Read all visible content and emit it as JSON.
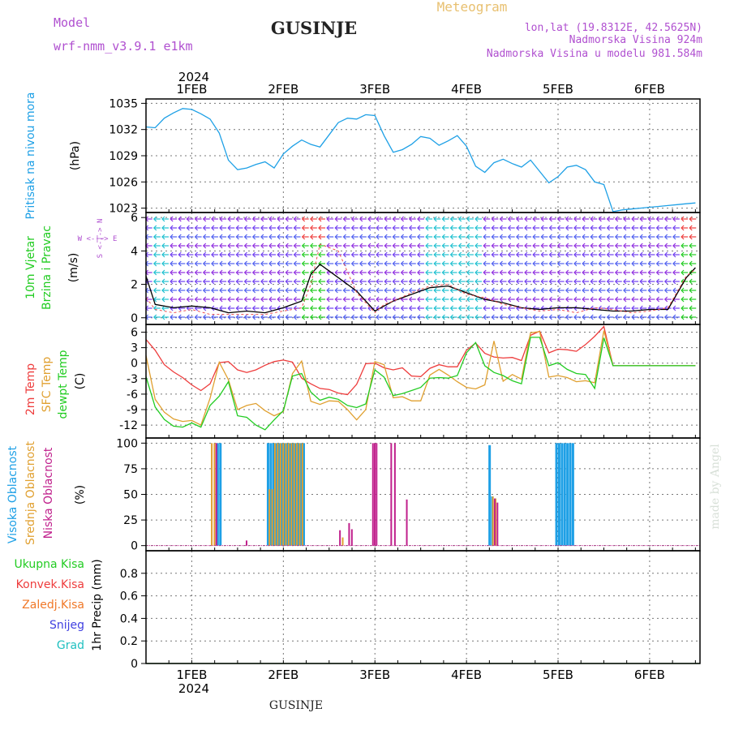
{
  "header": {
    "model_label": "Model",
    "model_name": "wrf-nmm_v3.9.1  e1km",
    "station": "GUSINJE",
    "product": "Meteogram",
    "lonlat": "lon,lat (19.8312E, 42.5625N)",
    "elevation": "Nadmorska Visina 924m",
    "model_elevation": "Nadmorska Visina u modelu 981.584m"
  },
  "footer": {
    "station": "GUSINJE",
    "watermark": "made by Angel"
  },
  "colors": {
    "pressure": "#1ea0e6",
    "wind_green": "#22cc22",
    "temp2m": "#ee3c3c",
    "sfc": "#e0a030",
    "dew": "#22cc22",
    "cloud_high": "#1ea0e6",
    "cloud_mid": "#e0a030",
    "cloud_low": "#c0208c",
    "precip_total": "#22cc22",
    "precip_conv": "#ee3c3c",
    "precip_frz": "#f07828",
    "precip_snow": "#4040e0",
    "precip_grad": "#20c0c0",
    "model": "#b050d0"
  },
  "time_axis": {
    "year": "2024",
    "days": [
      "1FEB",
      "2FEB",
      "3FEB",
      "4FEB",
      "5FEB",
      "6FEB"
    ],
    "range_days": [
      -0.5,
      5.55
    ]
  },
  "chart_data": [
    {
      "type": "line",
      "panel": "pressure",
      "ylabel": "Pritisak na nivou mora",
      "unit": "(hPa)",
      "ylim": [
        1022.5,
        1035.5
      ],
      "yticks": [
        1023,
        1026,
        1029,
        1032,
        1035
      ],
      "series": [
        {
          "x": [
            -0.5,
            -0.4,
            -0.3,
            -0.2,
            -0.1,
            0,
            0.1,
            0.2,
            0.3,
            0.4,
            0.5,
            0.6,
            0.7,
            0.8,
            0.9,
            1.0,
            1.1,
            1.2,
            1.3,
            1.4,
            1.5,
            1.6,
            1.7,
            1.8,
            1.9,
            2.0,
            2.1,
            2.2,
            2.3,
            2.4,
            2.5,
            2.6,
            2.7,
            2.8,
            2.9,
            3.0,
            3.1,
            3.2,
            3.3,
            3.4,
            3.5,
            3.6,
            3.7,
            3.8,
            3.9,
            4.0,
            4.1,
            4.2,
            4.3,
            4.4,
            4.5,
            4.6,
            4.7,
            4.8,
            4.9,
            5.0,
            5.1,
            5.2,
            5.3,
            5.4,
            5.5
          ],
          "values": [
            1032.3,
            1032.2,
            1033.3,
            1033.9,
            1034.4,
            1034.3,
            1033.8,
            1033.2,
            1031.6,
            1028.5,
            1027.4,
            1027.6,
            1028.0,
            1028.3,
            1027.6,
            1029.2,
            1030.1,
            1030.8,
            1030.3,
            1030.0,
            1031.4,
            1032.8,
            1033.3,
            1033.2,
            1033.7,
            1033.6,
            1031.3,
            1029.4,
            1029.7,
            1030.3,
            1031.2,
            1031.0,
            1030.2,
            1030.7,
            1031.3,
            1030.1,
            1027.8,
            1027.1,
            1028.2,
            1028.6,
            1028.1,
            1027.7,
            1028.5,
            1027.2,
            1025.9,
            1026.6,
            1027.7,
            1027.9,
            1027.4,
            1026.0,
            1025.7,
            1022.6,
            1022.8,
            1022.9,
            1023.0,
            1023.1,
            1023.2,
            1023.3,
            1023.4,
            1023.5,
            1023.6
          ]
        }
      ]
    },
    {
      "type": "line",
      "panel": "wind",
      "ylabel": "10m Vjetar",
      "ylabel2": "Brzina i Pravac",
      "unit": "(m/s)",
      "compass": "W <-|-> E",
      "compass_v": "S <-|-> N",
      "ylim": [
        -0.4,
        6.3
      ],
      "yticks": [
        0,
        2,
        4,
        6
      ],
      "series": [
        {
          "name": "speed",
          "x": [
            -0.5,
            -0.4,
            -0.2,
            0,
            0.2,
            0.4,
            0.6,
            0.8,
            1.0,
            1.2,
            1.3,
            1.4,
            1.6,
            1.8,
            2.0,
            2.1,
            2.2,
            2.4,
            2.6,
            2.8,
            3.0,
            3.2,
            3.4,
            3.6,
            3.8,
            4.0,
            4.2,
            4.4,
            4.6,
            4.8,
            5.0,
            5.2,
            5.4,
            5.5
          ],
          "values": [
            2.5,
            0.8,
            0.6,
            0.7,
            0.6,
            0.3,
            0.4,
            0.3,
            0.6,
            1.0,
            2.6,
            3.2,
            2.4,
            1.6,
            0.4,
            0.7,
            1.0,
            1.4,
            1.8,
            1.9,
            1.5,
            1.1,
            0.9,
            0.6,
            0.5,
            0.6,
            0.6,
            0.5,
            0.4,
            0.4,
            0.5,
            0.5,
            2.4,
            3.0
          ]
        },
        {
          "name": "gust",
          "x": [
            -0.5,
            -0.4,
            -0.2,
            0,
            0.2,
            0.4,
            0.6,
            0.8,
            1.0,
            1.2,
            1.3,
            1.4,
            1.6,
            1.8,
            2.0,
            2.1,
            2.2,
            2.4,
            2.6,
            2.8,
            3.0,
            3.2,
            3.4,
            3.6,
            3.8,
            4.0,
            4.2,
            4.4,
            4.6,
            4.8,
            5.0,
            5.2,
            5.4,
            5.5
          ],
          "values": [
            1.2,
            0.5,
            0.3,
            0.5,
            0.2,
            0.2,
            0.2,
            0.2,
            0.4,
            0.6,
            2.0,
            4.4,
            4.0,
            1.5,
            0.3,
            0.8,
            1.0,
            1.5,
            1.9,
            2.0,
            1.4,
            1.2,
            0.8,
            0.6,
            0.4,
            0.5,
            0.3,
            0.6,
            0.5,
            0.3,
            0.4,
            0.6,
            2.5,
            2.9
          ]
        }
      ]
    },
    {
      "type": "line",
      "panel": "temperature",
      "ylabels": [
        "2m Temp",
        "SFC Temp",
        "dewpt Temp"
      ],
      "unit": "(C)",
      "ylim": [
        -14.5,
        7.5
      ],
      "yticks": [
        -12,
        -9,
        -6,
        -3,
        0,
        3,
        6
      ],
      "series": [
        {
          "name": "2m Temp",
          "x": [
            -0.5,
            -0.4,
            -0.3,
            -0.2,
            -0.1,
            0,
            0.1,
            0.2,
            0.3,
            0.4,
            0.5,
            0.6,
            0.7,
            0.8,
            0.9,
            1.0,
            1.1,
            1.2,
            1.3,
            1.4,
            1.5,
            1.6,
            1.7,
            1.8,
            1.9,
            2.0,
            2.1,
            2.2,
            2.3,
            2.4,
            2.5,
            2.6,
            2.7,
            2.8,
            2.9,
            3.0,
            3.1,
            3.2,
            3.3,
            3.4,
            3.5,
            3.6,
            3.7,
            3.8,
            3.9,
            4.0,
            4.1,
            4.2,
            4.3,
            4.4,
            4.5,
            4.6,
            4.7,
            4.8,
            4.9,
            5.0,
            5.1,
            5.2,
            5.3,
            5.4,
            5.5
          ],
          "values": [
            4.6,
            2.5,
            -0.3,
            -1.7,
            -2.8,
            -4.2,
            -5.3,
            -4.0,
            0.1,
            0.3,
            -1.3,
            -1.8,
            -1.3,
            -0.4,
            0.3,
            0.6,
            0.2,
            -2.9,
            -4.0,
            -4.9,
            -5.1,
            -5.8,
            -6.1,
            -4.1,
            -0.1,
            0.0,
            -0.9,
            -1.3,
            -0.9,
            -2.5,
            -2.6,
            -1.0,
            -0.3,
            -0.7,
            -0.7,
            2.5,
            3.9,
            1.9,
            1.2,
            1.0,
            1.1,
            0.5,
            5.4,
            6.2,
            2.0,
            2.7,
            2.6,
            2.3,
            3.6,
            5.2,
            7.1,
            -0.5,
            -0.5,
            -0.5,
            -0.5,
            -0.5,
            -0.5,
            -0.5,
            -0.5,
            -0.5,
            -0.5
          ]
        },
        {
          "name": "SFC Temp",
          "x": [
            -0.5,
            -0.4,
            -0.3,
            -0.2,
            -0.1,
            0,
            0.1,
            0.2,
            0.3,
            0.4,
            0.5,
            0.6,
            0.7,
            0.8,
            0.9,
            1.0,
            1.1,
            1.2,
            1.3,
            1.4,
            1.5,
            1.6,
            1.7,
            1.8,
            1.9,
            2.0,
            2.1,
            2.2,
            2.3,
            2.4,
            2.5,
            2.6,
            2.7,
            2.8,
            2.9,
            3.0,
            3.1,
            3.2,
            3.3,
            3.4,
            3.5,
            3.6,
            3.7,
            3.8,
            3.9,
            4.0,
            4.1,
            4.2,
            4.3,
            4.4,
            4.5,
            4.6,
            4.7,
            4.8,
            4.9,
            5.0,
            5.1,
            5.2,
            5.3,
            5.4,
            5.5
          ],
          "values": [
            1.5,
            -7.0,
            -9.5,
            -10.8,
            -11.3,
            -11.1,
            -12.0,
            -6.8,
            0.2,
            -3.2,
            -9.0,
            -8.2,
            -7.8,
            -9.2,
            -10.2,
            -9.4,
            -2.0,
            0.4,
            -7.4,
            -8.0,
            -7.3,
            -7.4,
            -9.0,
            -11.0,
            -9.0,
            0.3,
            -0.3,
            -6.7,
            -6.5,
            -7.3,
            -7.3,
            -2.3,
            -1.2,
            -2.3,
            -3.6,
            -4.7,
            -5.0,
            -4.2,
            4.3,
            -3.5,
            -2.2,
            -3.1,
            5.9,
            6.1,
            -2.7,
            -2.4,
            -2.8,
            -3.6,
            -3.4,
            -3.8,
            6.3,
            -0.5,
            -0.5,
            -0.5,
            -0.5,
            -0.5,
            -0.5,
            -0.5,
            -0.5,
            -0.5,
            -0.5
          ]
        },
        {
          "name": "dewpt Temp",
          "x": [
            -0.5,
            -0.4,
            -0.3,
            -0.2,
            -0.1,
            0,
            0.1,
            0.2,
            0.3,
            0.4,
            0.5,
            0.6,
            0.7,
            0.8,
            0.9,
            1.0,
            1.1,
            1.2,
            1.3,
            1.4,
            1.5,
            1.6,
            1.7,
            1.8,
            1.9,
            2.0,
            2.1,
            2.2,
            2.3,
            2.4,
            2.5,
            2.6,
            2.7,
            2.8,
            2.9,
            3.0,
            3.1,
            3.2,
            3.3,
            3.4,
            3.5,
            3.6,
            3.7,
            3.8,
            3.9,
            4.0,
            4.1,
            4.2,
            4.3,
            4.4,
            4.5,
            4.6,
            4.7,
            4.8,
            4.9,
            5.0,
            5.1,
            5.2,
            5.3,
            5.4,
            5.5
          ],
          "values": [
            -2.6,
            -8.5,
            -10.9,
            -12.2,
            -12.4,
            -11.6,
            -12.4,
            -8.2,
            -6.4,
            -3.6,
            -10.2,
            -10.5,
            -12.0,
            -12.9,
            -11.0,
            -9.2,
            -2.5,
            -2.0,
            -5.6,
            -7.2,
            -6.6,
            -7.0,
            -8.2,
            -8.6,
            -7.9,
            -1.3,
            -2.7,
            -6.3,
            -5.9,
            -5.3,
            -4.7,
            -2.9,
            -2.8,
            -2.9,
            -2.4,
            2.0,
            4.0,
            -0.5,
            -1.8,
            -2.4,
            -3.4,
            -4.0,
            5.0,
            5.0,
            -0.5,
            0.1,
            -1.2,
            -2.0,
            -2.2,
            -4.9,
            4.9,
            -0.5,
            -0.5,
            -0.5,
            -0.5,
            -0.5,
            -0.5,
            -0.5,
            -0.5,
            -0.5,
            -0.5
          ]
        }
      ]
    },
    {
      "type": "bar",
      "panel": "clouds",
      "ylabels": [
        "Visoka Oblacnost",
        "Srednja Oblacnost",
        "Niska Oblacnost"
      ],
      "unit": "(%)",
      "ylim": [
        -5,
        105
      ],
      "yticks": [
        0,
        25,
        50,
        75,
        100
      ],
      "series": [
        {
          "name": "Visoka Oblacnost",
          "x": [
            0.28,
            0.31,
            0.83,
            0.86,
            0.89,
            0.92,
            0.95,
            0.98,
            1.01,
            1.04,
            1.07,
            1.1,
            1.13,
            1.16,
            1.19,
            1.22,
            3.25,
            3.28,
            3.98,
            4.01,
            4.04,
            4.07,
            4.1,
            4.13,
            4.16
          ],
          "values": [
            100,
            100,
            100,
            100,
            100,
            100,
            100,
            100,
            100,
            100,
            100,
            100,
            100,
            100,
            100,
            100,
            98,
            48,
            100,
            100,
            100,
            100,
            100,
            100,
            100
          ]
        },
        {
          "name": "Srednja Oblacnost",
          "x": [
            0.22,
            0.25,
            0.85,
            0.88,
            0.91,
            0.94,
            0.97,
            1.0,
            1.03,
            1.06,
            1.09,
            1.12,
            1.15,
            1.18,
            1.21,
            1.65,
            3.29,
            3.32
          ],
          "values": [
            100,
            100,
            55,
            55,
            100,
            100,
            100,
            100,
            100,
            100,
            100,
            100,
            100,
            100,
            100,
            8,
            48,
            46
          ]
        },
        {
          "name": "Niska Oblacnost",
          "x": [
            0.27,
            0.6,
            1.62,
            1.72,
            1.75,
            1.98,
            2.0,
            2.02,
            2.18,
            2.22,
            2.35,
            3.31,
            3.34
          ],
          "values": [
            100,
            5,
            15,
            22,
            16,
            100,
            100,
            100,
            100,
            100,
            45,
            46,
            42
          ]
        }
      ]
    },
    {
      "type": "line",
      "panel": "precipitation",
      "ylabels": [
        "Ukupna Kisa",
        "Konvek.Kisa",
        "Zaledj.Kisa",
        "Snijeg",
        "Grad"
      ],
      "unit": "1hr Precip (mm)",
      "ylim": [
        0,
        1.0
      ],
      "yticks": [
        0,
        0.2,
        0.4,
        0.6,
        0.8
      ],
      "series": [
        {
          "name": "Ukupna Kisa",
          "x": [
            -0.5,
            5.55
          ],
          "values": [
            0,
            0
          ]
        }
      ]
    }
  ]
}
